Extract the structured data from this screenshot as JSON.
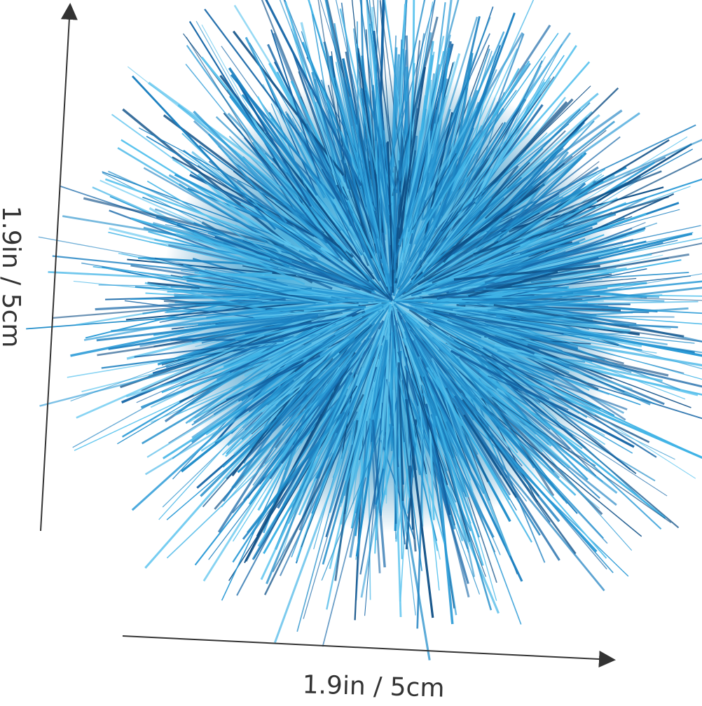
{
  "dimensions": {
    "height": {
      "label": "1.9in / 5cm"
    },
    "width": {
      "label": "1.9in / 5cm"
    }
  }
}
